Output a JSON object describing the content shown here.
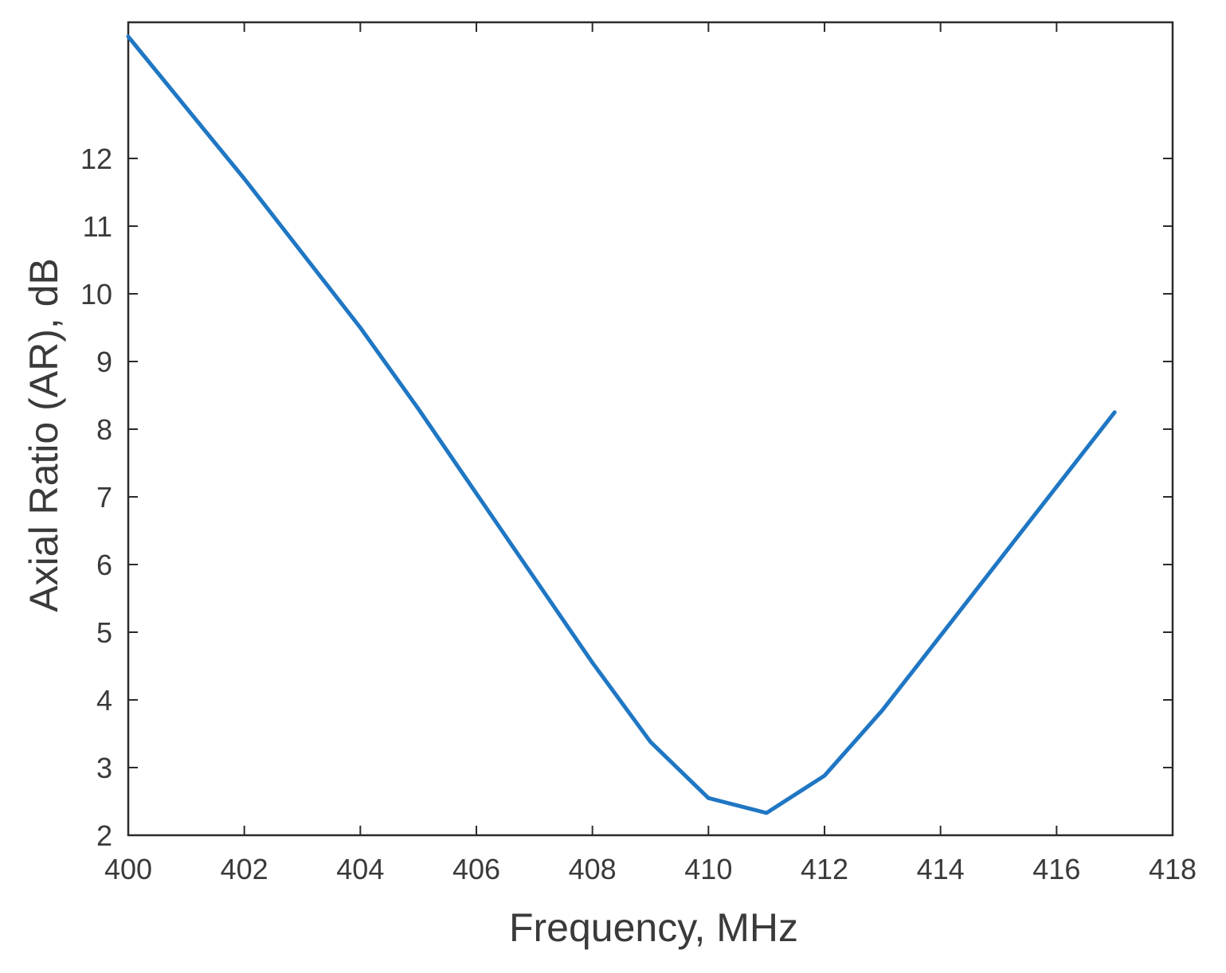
{
  "chart_data": {
    "type": "line",
    "title": "",
    "xlabel": "Frequency, MHz",
    "ylabel": "Axial Ratio (AR), dB",
    "xlim": [
      400,
      418
    ],
    "ylim": [
      2,
      14
    ],
    "x_ticks": [
      400,
      402,
      404,
      406,
      408,
      410,
      412,
      414,
      416,
      418
    ],
    "y_ticks": [
      2,
      3,
      4,
      5,
      6,
      7,
      8,
      9,
      10,
      11,
      12
    ],
    "grid": false,
    "box": true,
    "series": [
      {
        "color": "#1f77c4",
        "x": [
          400,
          401,
          402,
          403,
          404,
          405,
          406,
          407,
          408,
          409,
          410,
          411,
          412,
          413,
          414,
          415,
          416,
          417
        ],
        "y": [
          13.8,
          12.75,
          11.7,
          10.6,
          9.5,
          8.3,
          7.05,
          5.8,
          4.55,
          3.38,
          2.55,
          2.33,
          2.88,
          3.85,
          4.95,
          6.05,
          7.15,
          8.25
        ]
      }
    ]
  }
}
